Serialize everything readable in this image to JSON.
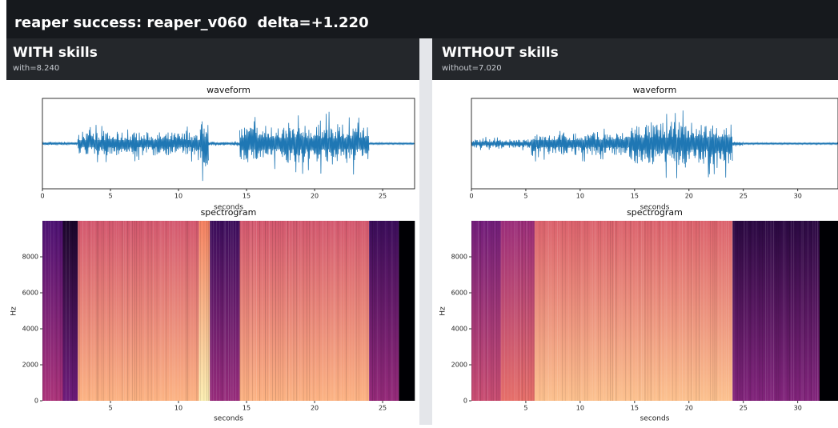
{
  "header": {
    "title": "reaper success: reaper_v060  delta=+1.220"
  },
  "panels": [
    {
      "title": "WITH skills",
      "subtitle": "with=8.240",
      "waveform": {
        "title": "waveform",
        "xlabel": "seconds",
        "xlim": [
          0,
          27.35
        ],
        "xticks": [
          0,
          5,
          10,
          15,
          20,
          25
        ],
        "segments": [
          {
            "start": 0,
            "end": 2.6,
            "amplitude": 0.04
          },
          {
            "start": 2.6,
            "end": 11.6,
            "amplitude": 0.45
          },
          {
            "start": 11.6,
            "end": 12.2,
            "amplitude": 1.0
          },
          {
            "start": 12.2,
            "end": 14.5,
            "amplitude": 0.05
          },
          {
            "start": 14.5,
            "end": 24.0,
            "amplitude": 0.75
          },
          {
            "start": 24.0,
            "end": 27.35,
            "amplitude": 0.01
          }
        ]
      },
      "spectrogram": {
        "title": "spectrogram",
        "xlabel": "seconds",
        "ylabel": "Hz",
        "xlim": [
          0,
          27.35
        ],
        "xticks": [
          5,
          10,
          15,
          20,
          25
        ],
        "ylim": [
          0,
          10000
        ],
        "yticks": [
          0,
          2000,
          4000,
          6000,
          8000
        ],
        "segments": [
          {
            "start": 0,
            "end": 1.5,
            "level": 0.35
          },
          {
            "start": 1.5,
            "end": 2.6,
            "level": 0.2
          },
          {
            "start": 2.6,
            "end": 11.5,
            "level": 0.72
          },
          {
            "start": 11.5,
            "end": 12.3,
            "level": 0.85
          },
          {
            "start": 12.3,
            "end": 14.5,
            "level": 0.3
          },
          {
            "start": 14.5,
            "end": 24.0,
            "level": 0.72
          },
          {
            "start": 24.0,
            "end": 26.2,
            "level": 0.3
          },
          {
            "start": 26.2,
            "end": 27.35,
            "level": 0
          }
        ]
      }
    },
    {
      "title": "WITHOUT skills",
      "subtitle": "without=7.020",
      "waveform": {
        "title": "waveform",
        "xlabel": "seconds",
        "xlim": [
          0,
          33.7
        ],
        "xticks": [
          0,
          5,
          10,
          15,
          20,
          25,
          30
        ],
        "segments": [
          {
            "start": 0,
            "end": 5.5,
            "amplitude": 0.15
          },
          {
            "start": 5.5,
            "end": 14.5,
            "amplitude": 0.45
          },
          {
            "start": 14.5,
            "end": 24.0,
            "amplitude": 0.85
          },
          {
            "start": 24.0,
            "end": 25.0,
            "amplitude": 0.06
          },
          {
            "start": 25.0,
            "end": 33.7,
            "amplitude": 0.01
          }
        ]
      },
      "spectrogram": {
        "title": "spectrogram",
        "xlabel": "seconds",
        "ylabel": "Hz",
        "xlim": [
          0,
          33.7
        ],
        "xticks": [
          5,
          10,
          15,
          20,
          25,
          30
        ],
        "ylim": [
          0,
          10000
        ],
        "yticks": [
          0,
          2000,
          4000,
          6000,
          8000
        ],
        "segments": [
          {
            "start": 0,
            "end": 2.7,
            "level": 0.45
          },
          {
            "start": 2.7,
            "end": 5.8,
            "level": 0.55
          },
          {
            "start": 5.8,
            "end": 24.0,
            "level": 0.75
          },
          {
            "start": 24.0,
            "end": 32.0,
            "level": 0.25
          },
          {
            "start": 32.0,
            "end": 33.7,
            "level": 0
          }
        ]
      }
    }
  ]
}
